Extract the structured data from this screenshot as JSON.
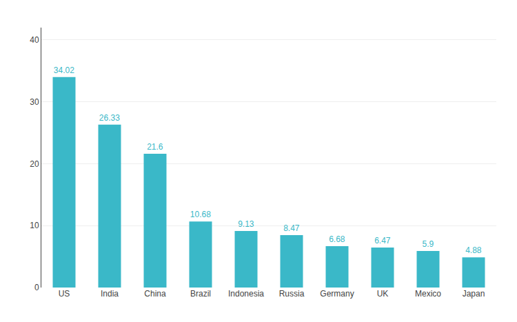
{
  "chart_data": {
    "type": "bar",
    "categories": [
      "US",
      "India",
      "China",
      "Brazil",
      "Indonesia",
      "Russia",
      "Germany",
      "UK",
      "Mexico",
      "Japan"
    ],
    "values": [
      34.02,
      26.33,
      21.6,
      10.68,
      9.13,
      8.47,
      6.68,
      6.47,
      5.9,
      4.88
    ],
    "color": "#3ab8c8",
    "ylim": [
      0,
      42
    ],
    "yticks": [
      0,
      10,
      20,
      30,
      40
    ],
    "grid": true,
    "data_labels": true
  }
}
